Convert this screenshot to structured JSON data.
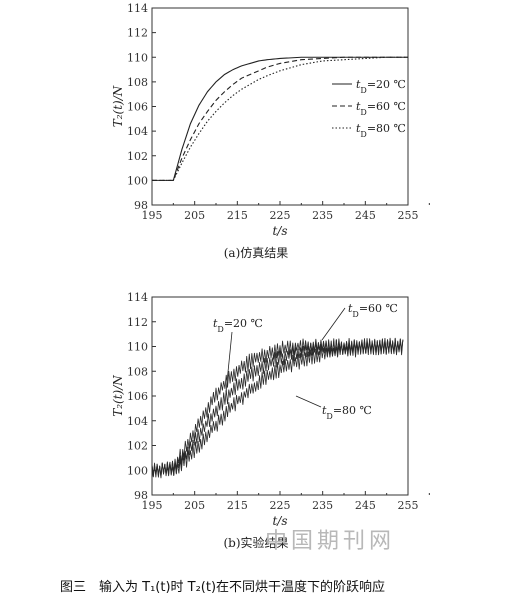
{
  "figure_caption": "图三　输入为 T₁(t)时 T₂(t)在不同烘干温度下的阶跃响应",
  "watermark": "中国期刊网",
  "chart_data": [
    {
      "type": "line",
      "caption": "(a)仿真结果",
      "xlabel": "t/s",
      "ylabel": "T₂(t)/N",
      "xlim": [
        195,
        255
      ],
      "ylim": [
        98,
        114
      ],
      "xticks": [
        195,
        205,
        215,
        225,
        235,
        245,
        255
      ],
      "yticks": [
        98,
        100,
        102,
        104,
        106,
        108,
        110,
        112,
        114
      ],
      "grid": false,
      "legend_position": "right",
      "series": [
        {
          "name": "tD=20 ℃",
          "label_parts": [
            "t",
            "D",
            "=20 ℃"
          ],
          "style": "solid",
          "x": [
            195,
            200,
            202,
            204,
            206,
            208,
            210,
            212,
            214,
            216,
            218,
            220,
            222,
            225,
            230,
            235,
            240,
            245,
            250,
            255
          ],
          "y": [
            100,
            100,
            102.5,
            104.6,
            106.1,
            107.2,
            108.0,
            108.6,
            109.0,
            109.3,
            109.5,
            109.7,
            109.8,
            109.9,
            110.0,
            110.0,
            110.0,
            110.0,
            110.0,
            110.0
          ]
        },
        {
          "name": "tD=60 ℃",
          "label_parts": [
            "t",
            "D",
            "=60 ℃"
          ],
          "style": "dashed",
          "x": [
            195,
            200,
            202,
            204,
            206,
            208,
            210,
            212,
            214,
            216,
            218,
            220,
            222,
            225,
            230,
            235,
            240,
            245,
            250,
            255
          ],
          "y": [
            100,
            100,
            101.8,
            103.3,
            104.6,
            105.6,
            106.5,
            107.2,
            107.8,
            108.3,
            108.6,
            108.9,
            109.2,
            109.5,
            109.8,
            109.9,
            110.0,
            110.0,
            110.0,
            110.0
          ]
        },
        {
          "name": "tD=80 ℃",
          "label_parts": [
            "t",
            "D",
            "=80 ℃"
          ],
          "style": "dotted",
          "x": [
            195,
            200,
            202,
            204,
            206,
            208,
            210,
            212,
            214,
            216,
            218,
            220,
            222,
            225,
            230,
            235,
            240,
            245,
            250,
            255
          ],
          "y": [
            100,
            100,
            101.4,
            102.7,
            103.8,
            104.8,
            105.6,
            106.3,
            106.9,
            107.4,
            107.8,
            108.2,
            108.5,
            108.9,
            109.4,
            109.7,
            109.8,
            109.9,
            110.0,
            110.0
          ]
        }
      ]
    },
    {
      "type": "line",
      "caption": "(b)实验结果",
      "xlabel": "t/s",
      "ylabel": "T₂(t)/N",
      "xlim": [
        195,
        255
      ],
      "ylim": [
        98,
        114
      ],
      "xticks": [
        195,
        205,
        215,
        225,
        235,
        245,
        255
      ],
      "yticks": [
        98,
        100,
        102,
        104,
        106,
        108,
        110,
        112,
        114
      ],
      "grid": false,
      "noise_amplitude": 0.7,
      "series": [
        {
          "name": "tD=20 ℃",
          "label_parts": [
            "t",
            "D",
            "=20 ℃"
          ],
          "x": [
            195,
            200,
            203,
            206,
            209,
            212,
            215,
            218,
            221,
            224,
            227,
            230,
            235,
            240,
            245,
            250,
            254
          ],
          "y": [
            100.0,
            100.2,
            101.8,
            103.8,
            105.6,
            107.0,
            108.0,
            108.8,
            109.3,
            109.7,
            109.9,
            110.0,
            110.0,
            110.0,
            110.0,
            110.0,
            110.0
          ]
        },
        {
          "name": "tD=60 ℃",
          "label_parts": [
            "t",
            "D",
            "=60 ℃"
          ],
          "x": [
            195,
            200,
            203,
            206,
            209,
            212,
            215,
            218,
            221,
            224,
            227,
            230,
            235,
            240,
            245,
            250,
            254
          ],
          "y": [
            100.0,
            100.1,
            101.3,
            102.9,
            104.4,
            105.7,
            106.8,
            107.7,
            108.4,
            108.9,
            109.3,
            109.6,
            109.9,
            110.0,
            110.0,
            110.0,
            110.0
          ]
        },
        {
          "name": "tD=80 ℃",
          "label_parts": [
            "t",
            "D",
            "=80 ℃"
          ],
          "x": [
            195,
            200,
            203,
            206,
            209,
            212,
            215,
            218,
            221,
            224,
            227,
            230,
            235,
            240,
            245,
            250,
            254
          ],
          "y": [
            100.0,
            100.0,
            100.8,
            102.0,
            103.3,
            104.5,
            105.6,
            106.5,
            107.3,
            108.0,
            108.5,
            108.9,
            109.4,
            109.7,
            109.9,
            110.0,
            110.0
          ]
        }
      ]
    }
  ]
}
